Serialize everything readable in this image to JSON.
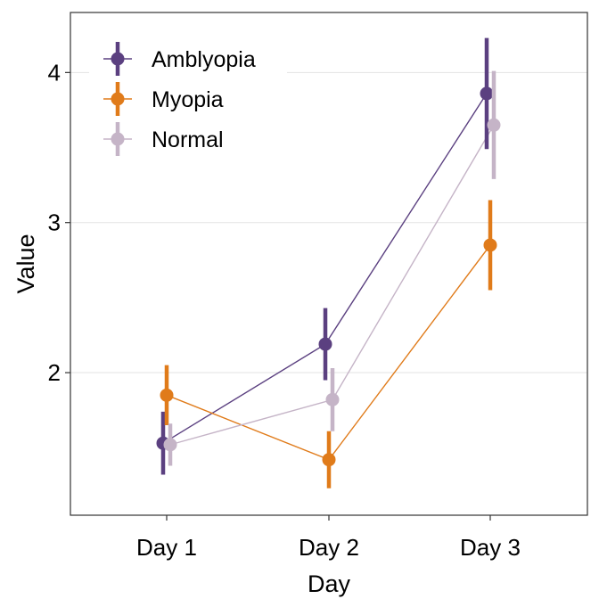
{
  "chart_data": {
    "type": "line",
    "title": "",
    "xlabel": "Day",
    "ylabel": "Value",
    "categories": [
      "Day 1",
      "Day 2",
      "Day 3"
    ],
    "yticks": [
      2,
      3,
      4
    ],
    "ylim": [
      1.05,
      4.4
    ],
    "grid": true,
    "legend_position": "top-left",
    "series": [
      {
        "name": "Amblyopia",
        "color": "#5b4080",
        "values": [
          1.53,
          2.19,
          3.86
        ],
        "lower": [
          1.32,
          1.95,
          3.49
        ],
        "upper": [
          1.74,
          2.43,
          4.23
        ]
      },
      {
        "name": "Myopia",
        "color": "#e07b1a",
        "values": [
          1.85,
          1.42,
          2.85
        ],
        "lower": [
          1.65,
          1.23,
          2.55
        ],
        "upper": [
          2.05,
          1.61,
          3.15
        ]
      },
      {
        "name": "Normal",
        "color": "#c5b4c7",
        "values": [
          1.52,
          1.82,
          3.65
        ],
        "lower": [
          1.38,
          1.61,
          3.29
        ],
        "upper": [
          1.66,
          2.03,
          4.01
        ]
      }
    ]
  }
}
